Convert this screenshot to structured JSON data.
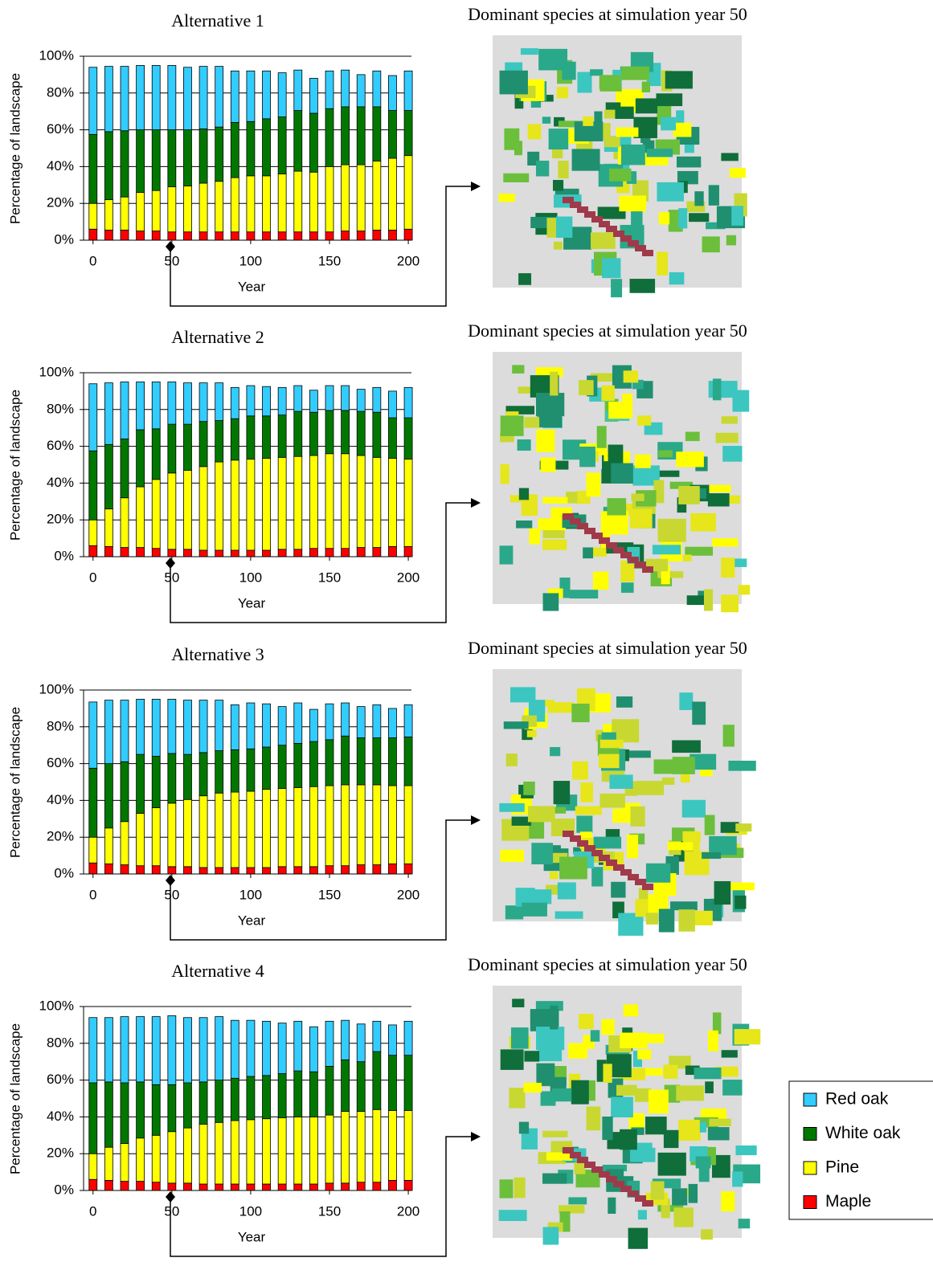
{
  "chart_data": [
    {
      "type": "stacked-bar",
      "title": "Alternative 1",
      "xlabel": "Year",
      "ylabel": "Percentage of landscape",
      "x": [
        0,
        10,
        20,
        30,
        40,
        50,
        60,
        70,
        80,
        90,
        100,
        110,
        120,
        130,
        140,
        150,
        160,
        170,
        180,
        190,
        200
      ],
      "xlim": [
        -6,
        202
      ],
      "xticks": [
        0,
        50,
        100,
        150,
        200
      ],
      "ylim": [
        0,
        100
      ],
      "yticks": [
        {
          "value": 0,
          "label": "0%"
        },
        {
          "value": 20,
          "label": "20%"
        },
        {
          "value": 40,
          "label": "40%"
        },
        {
          "value": 60,
          "label": "60%"
        },
        {
          "value": 80,
          "label": "80%"
        },
        {
          "value": 100,
          "label": "100%"
        }
      ],
      "grid": true,
      "legend": "right",
      "series": [
        {
          "name": "Maple",
          "color": "#ff0000",
          "values": [
            6,
            5.5,
            5.5,
            5,
            5,
            4.5,
            4.5,
            4.5,
            4.5,
            4.5,
            4.5,
            4.5,
            4.5,
            4.5,
            4.5,
            4.5,
            5,
            5,
            5.5,
            5.5,
            6
          ]
        },
        {
          "name": "Pine",
          "color": "#ffff00",
          "values": [
            14,
            16.5,
            18,
            21,
            22,
            24.5,
            25,
            26.5,
            27.5,
            29.5,
            30.5,
            30.5,
            31.5,
            33,
            32.5,
            35.5,
            36,
            36,
            37.5,
            39,
            40
          ]
        },
        {
          "name": "White oak",
          "color": "#007800",
          "values": [
            37.5,
            37,
            36,
            34,
            33,
            31,
            30.5,
            29.5,
            29.5,
            30,
            29.5,
            31,
            31,
            33,
            32,
            31.5,
            31.5,
            31.5,
            29.5,
            26,
            24.5
          ]
        },
        {
          "name": "Red oak",
          "color": "#33ccff",
          "values": [
            36.5,
            35.5,
            35,
            35,
            35,
            35,
            34,
            34,
            33,
            28,
            27.5,
            26,
            24,
            22,
            19,
            20.5,
            20,
            17.5,
            19.5,
            19,
            21.5
          ]
        }
      ]
    },
    {
      "type": "stacked-bar",
      "title": "Alternative 2",
      "xlabel": "Year",
      "ylabel": "Percentage of landscape",
      "x": [
        0,
        10,
        20,
        30,
        40,
        50,
        60,
        70,
        80,
        90,
        100,
        110,
        120,
        130,
        140,
        150,
        160,
        170,
        180,
        190,
        200
      ],
      "xlim": [
        -6,
        202
      ],
      "xticks": [
        0,
        50,
        100,
        150,
        200
      ],
      "ylim": [
        0,
        100
      ],
      "yticks": [
        {
          "value": 0,
          "label": "0%"
        },
        {
          "value": 20,
          "label": "20%"
        },
        {
          "value": 40,
          "label": "40%"
        },
        {
          "value": 60,
          "label": "60%"
        },
        {
          "value": 80,
          "label": "80%"
        },
        {
          "value": 100,
          "label": "100%"
        }
      ],
      "grid": true,
      "series": [
        {
          "color": "#ff0000",
          "values": [
            6,
            5.5,
            5,
            5,
            4.5,
            4,
            4,
            3.5,
            3.5,
            3.5,
            3.5,
            3.5,
            4,
            4,
            4.5,
            4.5,
            4.5,
            5,
            5,
            5.5,
            5.5
          ]
        },
        {
          "color": "#ffff00",
          "values": [
            14,
            20.5,
            27,
            33,
            37.5,
            41.5,
            43,
            45.5,
            48,
            49,
            49.5,
            50,
            50,
            50.5,
            50.5,
            51.5,
            51.5,
            50,
            49,
            48,
            47.5
          ]
        },
        {
          "color": "#007800",
          "values": [
            37.5,
            35,
            32,
            31,
            27.5,
            26.5,
            25,
            24.5,
            22.5,
            22.5,
            23.5,
            23,
            23,
            24.5,
            23.5,
            23.5,
            23.5,
            24,
            24.5,
            22,
            22.5
          ]
        },
        {
          "color": "#33ccff",
          "values": [
            36.5,
            33.5,
            31,
            26,
            25.5,
            23,
            22.5,
            21,
            20.5,
            17,
            16.5,
            16,
            15,
            14,
            12,
            13.5,
            13.5,
            12,
            13.5,
            14.5,
            16.5
          ]
        }
      ]
    },
    {
      "type": "stacked-bar",
      "title": "Alternative 3",
      "xlabel": "Year",
      "ylabel": "Percentage of landscape",
      "x": [
        0,
        10,
        20,
        30,
        40,
        50,
        60,
        70,
        80,
        90,
        100,
        110,
        120,
        130,
        140,
        150,
        160,
        170,
        180,
        190,
        200
      ],
      "xlim": [
        -6,
        202
      ],
      "xticks": [
        0,
        50,
        100,
        150,
        200
      ],
      "ylim": [
        0,
        100
      ],
      "yticks": [
        {
          "value": 0,
          "label": "0%"
        },
        {
          "value": 20,
          "label": "20%"
        },
        {
          "value": 40,
          "label": "40%"
        },
        {
          "value": 60,
          "label": "60%"
        },
        {
          "value": 80,
          "label": "80%"
        },
        {
          "value": 100,
          "label": "100%"
        }
      ],
      "grid": true,
      "series": [
        {
          "color": "#ff0000",
          "values": [
            6,
            5.5,
            5,
            4.5,
            4.5,
            4,
            4,
            3.5,
            3.5,
            3.5,
            3.5,
            3.5,
            4,
            4,
            4,
            4.5,
            4.5,
            5,
            5,
            5.5,
            5.5
          ]
        },
        {
          "color": "#ffff00",
          "values": [
            14,
            19.5,
            23.5,
            28.5,
            31.5,
            34.5,
            36.5,
            39,
            40.5,
            41,
            41.5,
            42.5,
            42.5,
            43,
            43.5,
            43.5,
            44,
            43.5,
            43.5,
            42.5,
            42.5
          ]
        },
        {
          "color": "#007800",
          "values": [
            37.5,
            35,
            32.5,
            32,
            28,
            27,
            24.5,
            23.5,
            23,
            23,
            23,
            23,
            23.5,
            24,
            24.5,
            25,
            26.5,
            25.5,
            25.5,
            26,
            26.5
          ]
        },
        {
          "color": "#33ccff",
          "values": [
            36,
            34.5,
            33.5,
            30,
            31,
            29.5,
            29.5,
            28.5,
            27.5,
            24.5,
            25,
            23.5,
            21,
            22,
            17.5,
            19.5,
            18,
            17,
            18,
            16,
            17.5
          ]
        }
      ]
    },
    {
      "type": "stacked-bar",
      "title": "Alternative 4",
      "xlabel": "Year",
      "ylabel": "Percentage of landscape",
      "x": [
        0,
        10,
        20,
        30,
        40,
        50,
        60,
        70,
        80,
        90,
        100,
        110,
        120,
        130,
        140,
        150,
        160,
        170,
        180,
        190,
        200
      ],
      "xlim": [
        -6,
        202
      ],
      "xticks": [
        0,
        50,
        100,
        150,
        200
      ],
      "ylim": [
        0,
        100
      ],
      "yticks": [
        {
          "value": 0,
          "label": "0%"
        },
        {
          "value": 20,
          "label": "20%"
        },
        {
          "value": 40,
          "label": "40%"
        },
        {
          "value": 60,
          "label": "60%"
        },
        {
          "value": 80,
          "label": "80%"
        },
        {
          "value": 100,
          "label": "100%"
        }
      ],
      "grid": true,
      "series": [
        {
          "color": "#ff0000",
          "values": [
            6,
            5.5,
            5,
            5,
            4.5,
            4,
            4,
            3.5,
            3.5,
            3.5,
            3.5,
            3.5,
            3.5,
            3.5,
            3.5,
            4,
            4,
            4.5,
            4.5,
            5.5,
            5.5
          ]
        },
        {
          "color": "#ffff00",
          "values": [
            14,
            18,
            20.5,
            23.5,
            25.5,
            28,
            30,
            32.5,
            33.5,
            34.5,
            35,
            35.5,
            36,
            36.5,
            36.5,
            37,
            39,
            38.5,
            39.5,
            38,
            38
          ]
        },
        {
          "color": "#007800",
          "values": [
            38.5,
            35.5,
            33,
            30.5,
            27.5,
            25.5,
            24.5,
            23,
            23,
            23,
            23.5,
            23.5,
            24,
            25,
            24.5,
            26.5,
            28,
            27,
            31.5,
            30,
            30
          ]
        },
        {
          "color": "#33ccff",
          "values": [
            35.5,
            35,
            36,
            35.5,
            37,
            37.5,
            35.5,
            35,
            34.5,
            31.5,
            30.5,
            29.5,
            27.5,
            27,
            24.5,
            24.5,
            21.5,
            20.5,
            16.5,
            16.5,
            18.5
          ]
        }
      ]
    }
  ],
  "maps": [
    {
      "title": "Dominant species at simulation year 50"
    },
    {
      "title": "Dominant species at simulation year 50"
    },
    {
      "title": "Dominant species at simulation year 50"
    },
    {
      "title": "Dominant species at simulation year 50"
    }
  ]
}
